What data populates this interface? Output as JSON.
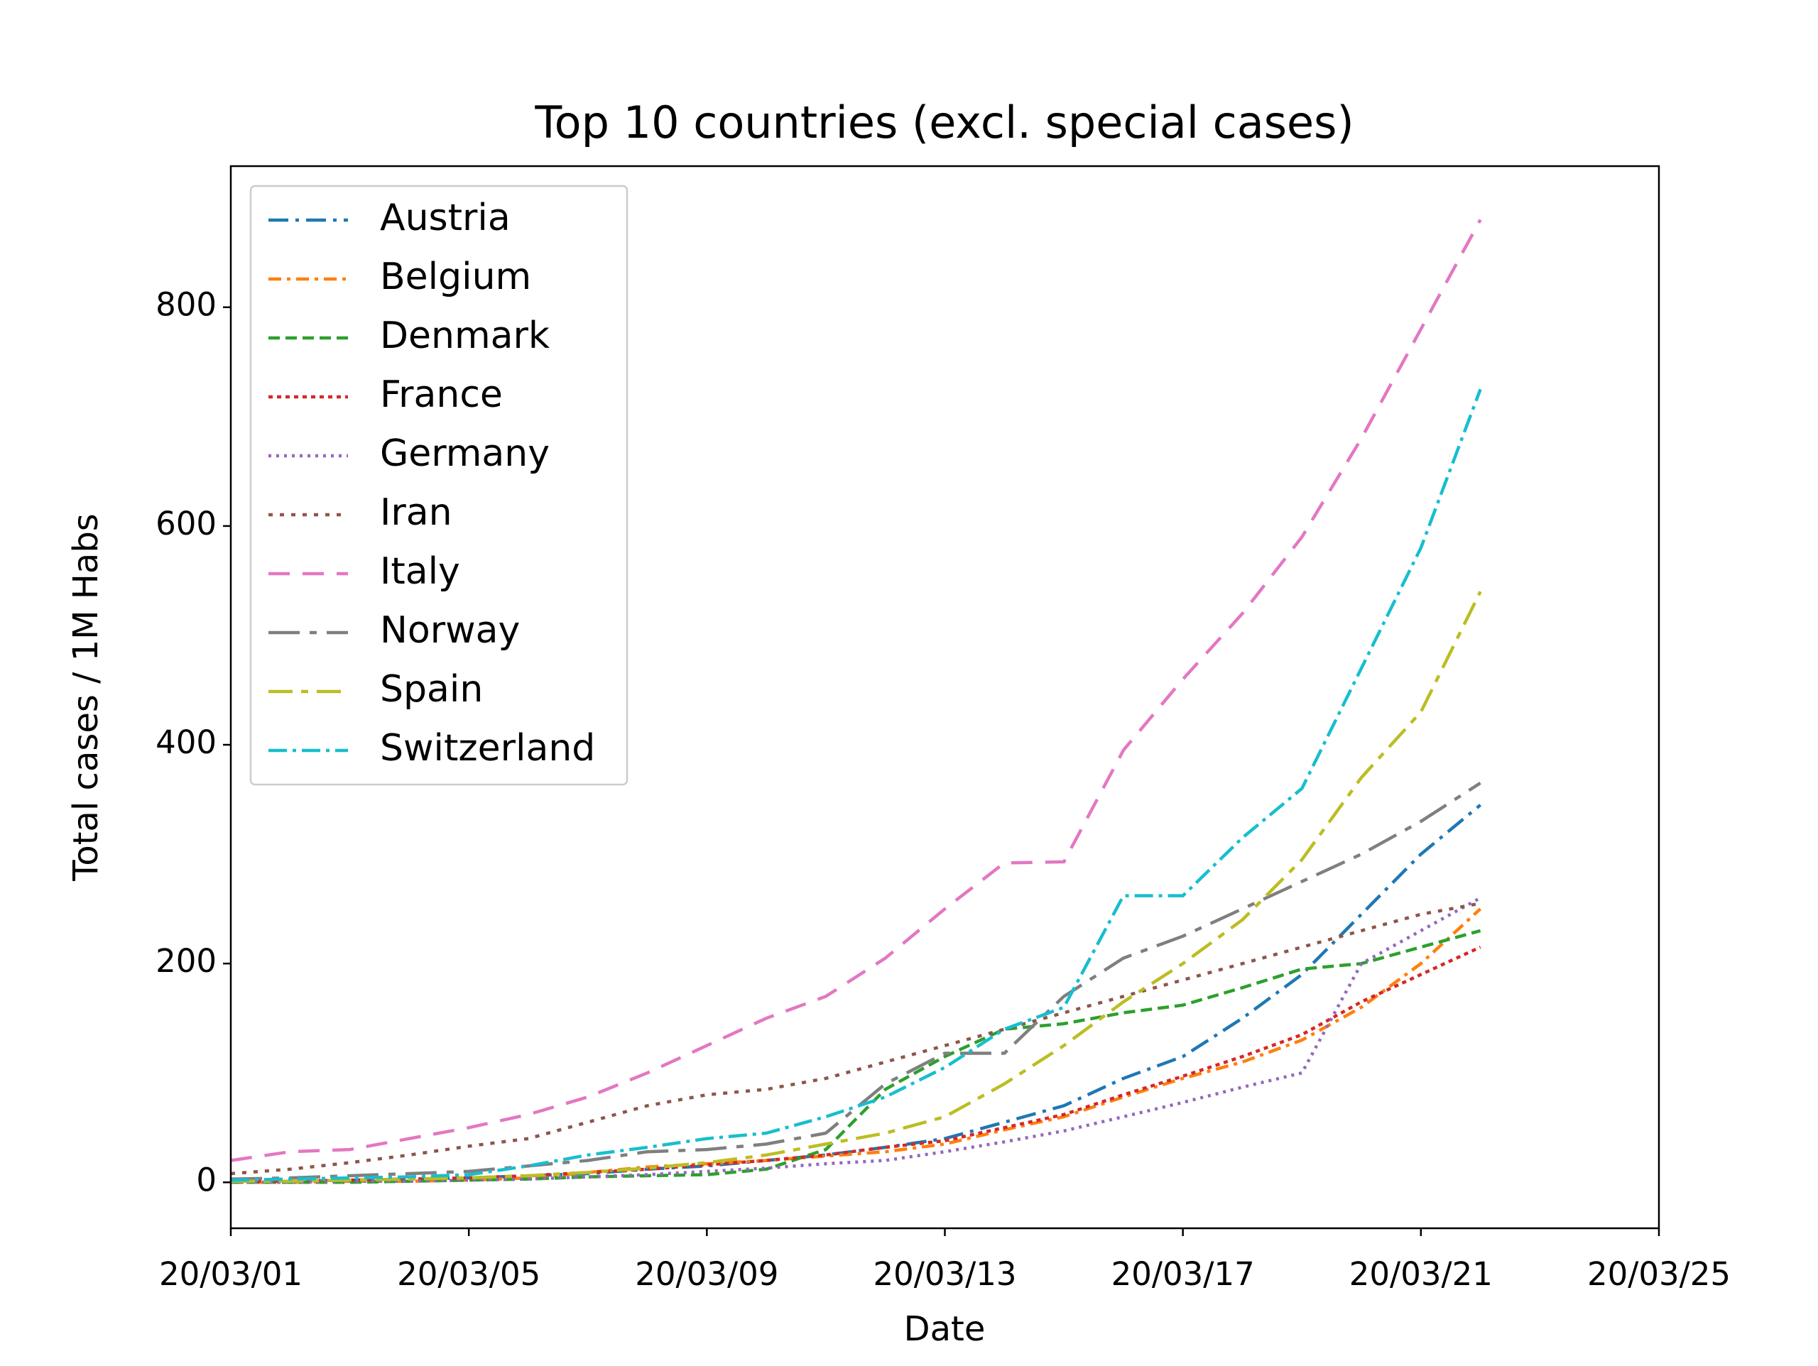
{
  "chart_data": {
    "type": "line",
    "title": "Top 10 countries (excl. special cases)",
    "xlabel": "Date",
    "ylabel": "Total cases / 1M Habs",
    "x": [
      "20/03/01",
      "20/03/02",
      "20/03/03",
      "20/03/04",
      "20/03/05",
      "20/03/06",
      "20/03/07",
      "20/03/08",
      "20/03/09",
      "20/03/10",
      "20/03/11",
      "20/03/12",
      "20/03/13",
      "20/03/14",
      "20/03/15",
      "20/03/16",
      "20/03/17",
      "20/03/18",
      "20/03/19",
      "20/03/20",
      "20/03/21",
      "20/03/22"
    ],
    "xlim": [
      "20/03/01",
      "20/03/25"
    ],
    "xticks": [
      "20/03/01",
      "20/03/05",
      "20/03/09",
      "20/03/13",
      "20/03/17",
      "20/03/21",
      "20/03/25"
    ],
    "ylim": [
      -42,
      929
    ],
    "yticks": [
      0,
      200,
      400,
      600,
      800
    ],
    "legend": "upper left",
    "grid": false,
    "series": [
      {
        "name": "Austria",
        "color": "#1f77b4",
        "values": [
          1,
          1,
          2,
          3,
          4,
          6,
          8,
          12,
          15,
          20,
          25,
          32,
          40,
          55,
          70,
          95,
          115,
          150,
          190,
          245,
          300,
          345
        ]
      },
      {
        "name": "Belgium",
        "color": "#ff7f0e",
        "values": [
          0,
          0,
          1,
          1,
          2,
          4,
          9,
          14,
          17,
          20,
          24,
          28,
          35,
          48,
          60,
          78,
          95,
          110,
          130,
          160,
          200,
          250
        ]
      },
      {
        "name": "Denmark",
        "color": "#2ca02c",
        "values": [
          0,
          0,
          0,
          1,
          2,
          3,
          5,
          6,
          7,
          12,
          30,
          85,
          115,
          140,
          145,
          155,
          162,
          178,
          195,
          200,
          215,
          230
        ]
      },
      {
        "name": "France",
        "color": "#d62728",
        "values": [
          1,
          1,
          2,
          3,
          4,
          6,
          9,
          12,
          16,
          20,
          25,
          32,
          38,
          50,
          62,
          80,
          97,
          115,
          135,
          165,
          190,
          215
        ]
      },
      {
        "name": "Germany",
        "color": "#9467bd",
        "values": [
          0,
          0,
          1,
          1,
          2,
          3,
          5,
          7,
          10,
          13,
          17,
          20,
          28,
          37,
          47,
          60,
          73,
          87,
          100,
          200,
          230,
          260
        ]
      },
      {
        "name": "Iran",
        "color": "#8c564b",
        "values": [
          8,
          12,
          18,
          25,
          33,
          40,
          55,
          70,
          80,
          85,
          95,
          110,
          125,
          140,
          155,
          170,
          185,
          200,
          215,
          230,
          245,
          255
        ]
      },
      {
        "name": "Italy",
        "color": "#e377c2",
        "values": [
          20,
          28,
          30,
          40,
          50,
          62,
          78,
          100,
          125,
          150,
          170,
          205,
          250,
          292,
          293,
          395,
          460,
          520,
          590,
          680,
          780,
          880
        ]
      },
      {
        "name": "Norway",
        "color": "#7f7f7f",
        "values": [
          3,
          4,
          6,
          8,
          10,
          15,
          20,
          28,
          30,
          35,
          45,
          90,
          118,
          118,
          170,
          205,
          225,
          250,
          275,
          300,
          330,
          365
        ]
      },
      {
        "name": "Spain",
        "color": "#bcbd22",
        "values": [
          1,
          1,
          2,
          3,
          4,
          6,
          9,
          13,
          18,
          25,
          35,
          45,
          60,
          90,
          125,
          165,
          200,
          240,
          295,
          370,
          430,
          540
        ]
      },
      {
        "name": "Switzerland",
        "color": "#17becf",
        "values": [
          2,
          3,
          4,
          5,
          7,
          15,
          25,
          32,
          40,
          45,
          60,
          78,
          105,
          140,
          160,
          262,
          262,
          315,
          360,
          470,
          580,
          725
        ]
      }
    ]
  }
}
